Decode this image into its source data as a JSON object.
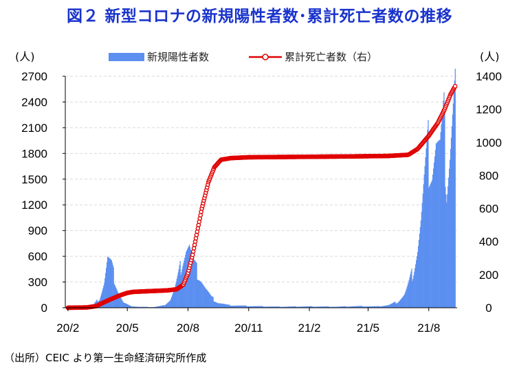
{
  "title": "図２ 新型コロナの新規陽性者数･累計死亡者数の推移",
  "source": "（出所）CEIC より第一生命経済研究所作成",
  "chart_data": {
    "type": "bar+line",
    "left_axis": {
      "unit_label": "(人)",
      "min": 0,
      "max": 2700,
      "ticks": [
        0,
        300,
        600,
        900,
        1200,
        1500,
        1800,
        2100,
        2400,
        2700
      ]
    },
    "right_axis": {
      "unit_label": "(人)",
      "min": 0,
      "max": 1400,
      "ticks": [
        0,
        200,
        400,
        600,
        800,
        1000,
        1200,
        1400
      ]
    },
    "x_axis": {
      "ticks": [
        "20/2",
        "20/5",
        "20/8",
        "20/11",
        "21/2",
        "21/5",
        "21/8"
      ]
    },
    "grid": "horizontal-dashed",
    "legend_position": "top",
    "series": [
      {
        "name": "新規陽性者数",
        "type": "bar",
        "axis": "left",
        "color": "#5b8ff0",
        "points": [
          [
            "2020-02-01",
            0
          ],
          [
            "2020-03-01",
            5
          ],
          [
            "2020-03-10",
            30
          ],
          [
            "2020-03-20",
            110
          ],
          [
            "2020-03-27",
            300
          ],
          [
            "2020-04-01",
            570
          ],
          [
            "2020-04-07",
            480
          ],
          [
            "2020-04-12",
            330
          ],
          [
            "2020-04-18",
            170
          ],
          [
            "2020-04-25",
            60
          ],
          [
            "2020-05-05",
            20
          ],
          [
            "2020-05-20",
            10
          ],
          [
            "2020-06-10",
            8
          ],
          [
            "2020-06-25",
            25
          ],
          [
            "2020-07-05",
            90
          ],
          [
            "2020-07-12",
            220
          ],
          [
            "2020-07-18",
            380
          ],
          [
            "2020-07-24",
            580
          ],
          [
            "2020-07-29",
            700
          ],
          [
            "2020-08-03",
            720
          ],
          [
            "2020-08-08",
            520
          ],
          [
            "2020-08-14",
            430
          ],
          [
            "2020-08-20",
            350
          ],
          [
            "2020-08-27",
            230
          ],
          [
            "2020-09-05",
            120
          ],
          [
            "2020-09-15",
            60
          ],
          [
            "2020-10-01",
            30
          ],
          [
            "2020-11-01",
            20
          ],
          [
            "2020-12-15",
            12
          ],
          [
            "2021-02-01",
            15
          ],
          [
            "2021-03-15",
            12
          ],
          [
            "2021-04-15",
            18
          ],
          [
            "2021-05-15",
            15
          ],
          [
            "2021-06-01",
            30
          ],
          [
            "2021-06-15",
            70
          ],
          [
            "2021-06-25",
            150
          ],
          [
            "2021-07-01",
            260
          ],
          [
            "2021-07-08",
            420
          ],
          [
            "2021-07-15",
            700
          ],
          [
            "2021-07-20",
            1000
          ],
          [
            "2021-07-25",
            1400
          ],
          [
            "2021-07-31",
            1800
          ],
          [
            "2021-08-06",
            1700
          ],
          [
            "2021-08-12",
            1950
          ],
          [
            "2021-08-18",
            1800
          ],
          [
            "2021-08-24",
            2100
          ],
          [
            "2021-08-28",
            1500
          ],
          [
            "2021-09-02",
            1900
          ],
          [
            "2021-09-06",
            2300
          ],
          [
            "2021-09-10",
            2650
          ]
        ]
      },
      {
        "name": "累計死亡者数（右）",
        "type": "line",
        "axis": "right",
        "color": "#e00000",
        "points": [
          [
            "2020-02-01",
            0
          ],
          [
            "2020-03-01",
            2
          ],
          [
            "2020-03-15",
            10
          ],
          [
            "2020-03-25",
            30
          ],
          [
            "2020-04-05",
            50
          ],
          [
            "2020-04-20",
            75
          ],
          [
            "2020-05-01",
            90
          ],
          [
            "2020-05-10",
            96
          ],
          [
            "2020-06-01",
            100
          ],
          [
            "2020-07-01",
            105
          ],
          [
            "2020-07-15",
            112
          ],
          [
            "2020-07-25",
            140
          ],
          [
            "2020-08-01",
            210
          ],
          [
            "2020-08-08",
            320
          ],
          [
            "2020-08-15",
            460
          ],
          [
            "2020-08-22",
            600
          ],
          [
            "2020-09-01",
            760
          ],
          [
            "2020-09-10",
            850
          ],
          [
            "2020-09-20",
            895
          ],
          [
            "2020-10-05",
            905
          ],
          [
            "2020-11-01",
            910
          ],
          [
            "2021-01-01",
            912
          ],
          [
            "2021-04-01",
            915
          ],
          [
            "2021-06-01",
            918
          ],
          [
            "2021-07-01",
            925
          ],
          [
            "2021-07-15",
            960
          ],
          [
            "2021-08-01",
            1040
          ],
          [
            "2021-08-15",
            1120
          ],
          [
            "2021-08-25",
            1200
          ],
          [
            "2021-09-03",
            1290
          ],
          [
            "2021-09-10",
            1340
          ]
        ]
      }
    ]
  }
}
